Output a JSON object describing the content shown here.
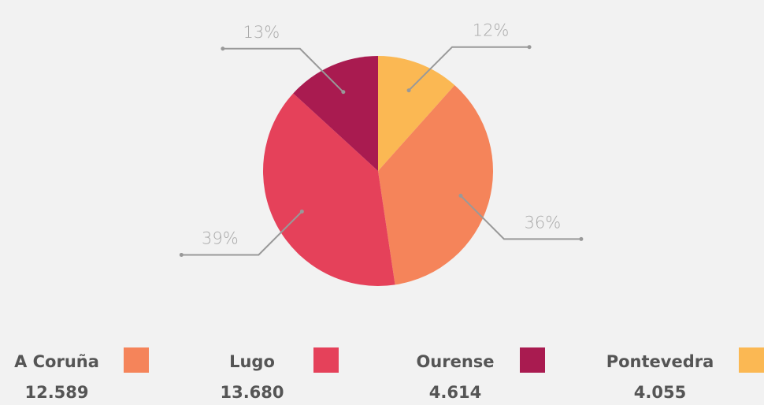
{
  "chart_data": {
    "type": "pie",
    "categories": [
      "A Coruña",
      "Lugo",
      "Ourense",
      "Pontevedra"
    ],
    "values": [
      12589,
      13680,
      4614,
      4055
    ],
    "value_labels": [
      "12.589",
      "13.680",
      "4.614",
      "4.055"
    ],
    "percent_labels": [
      "36%",
      "39%",
      "13%",
      "12%"
    ],
    "colors": [
      "#f5845a",
      "#e5415a",
      "#a91b50",
      "#fbb853"
    ]
  }
}
